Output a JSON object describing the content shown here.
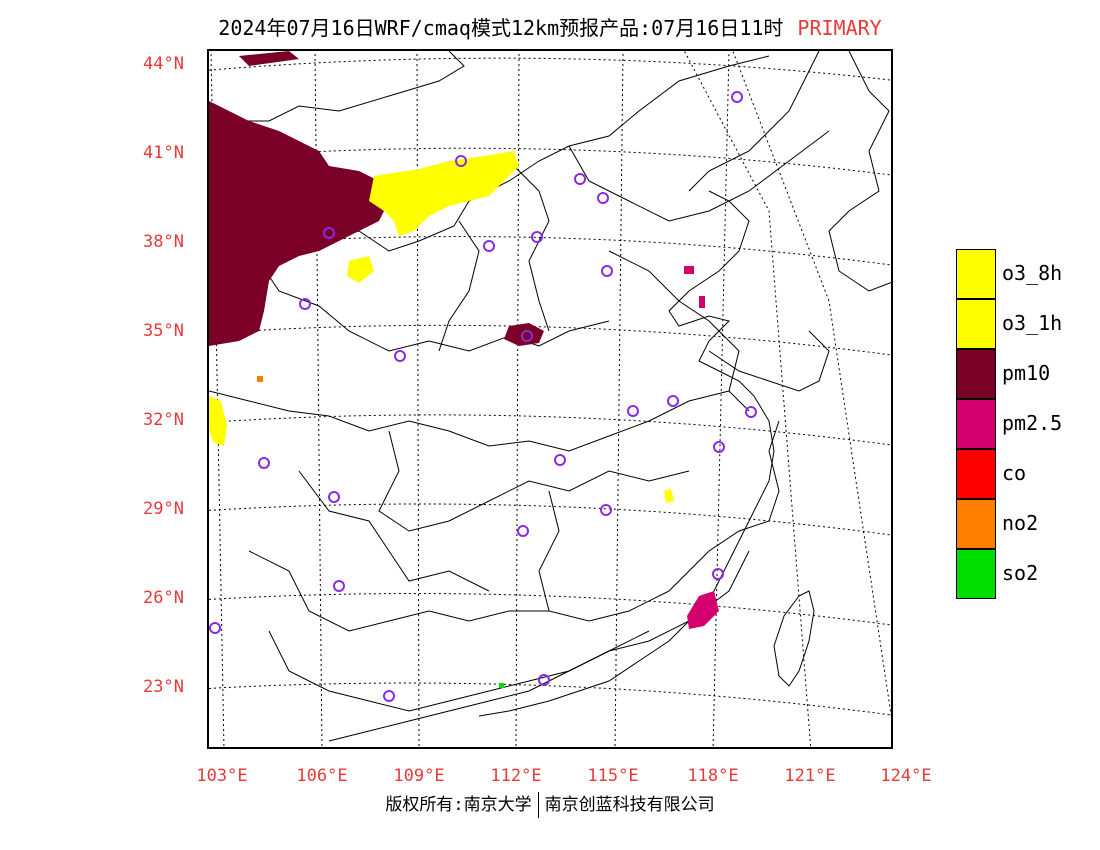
{
  "title": {
    "main": "2024年07月16日WRF/cmaq模式12km预报产品:07月16日11时",
    "tag": "PRIMARY",
    "tag_color": "#e83a3a"
  },
  "axes": {
    "latitudes": [
      "44°N",
      "41°N",
      "38°N",
      "35°N",
      "32°N",
      "29°N",
      "26°N",
      "23°N"
    ],
    "longitudes": [
      "103°E",
      "106°E",
      "109°E",
      "112°E",
      "115°E",
      "118°E",
      "121°E",
      "124°E"
    ],
    "label_color": "#e83a3a"
  },
  "legend": [
    {
      "label": "o3_8h",
      "color": "#ffff00"
    },
    {
      "label": "o3_1h",
      "color": "#ffff00"
    },
    {
      "label": "pm10",
      "color": "#7a0028"
    },
    {
      "label": "pm2.5",
      "color": "#d4006e"
    },
    {
      "label": "co",
      "color": "#ff0000"
    },
    {
      "label": "no2",
      "color": "#ff7f00"
    },
    {
      "label": "so2",
      "color": "#00dd00"
    }
  ],
  "copyright": {
    "left": "版权所有:南京大学",
    "right": "南京创蓝科技有限公司"
  },
  "map": {
    "station_marker_color": "#8a2be2"
  }
}
